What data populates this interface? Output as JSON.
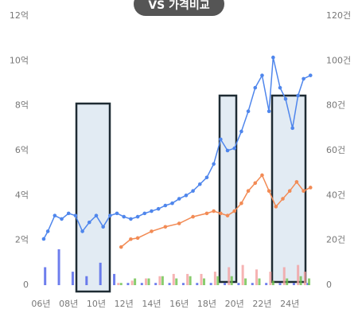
{
  "chart_data": {
    "type": "line",
    "button": "VS 가격비교",
    "xlim": [
      2005.8,
      2025.6
    ],
    "xticks": [
      {
        "value": 2006,
        "label": "06년"
      },
      {
        "value": 2008,
        "label": "08년"
      },
      {
        "value": 2010,
        "label": "10년"
      },
      {
        "value": 2012,
        "label": "12년"
      },
      {
        "value": 2014,
        "label": "14년"
      },
      {
        "value": 2016,
        "label": "16년"
      },
      {
        "value": 2018,
        "label": "18년"
      },
      {
        "value": 2020,
        "label": "20년"
      },
      {
        "value": 2022,
        "label": "22년"
      },
      {
        "value": 2024,
        "label": "24년"
      }
    ],
    "ylim": [
      0,
      12
    ],
    "yticks": [
      0,
      {
        "value": 2,
        "label": "2억"
      },
      {
        "value": 4,
        "label": "4억"
      },
      {
        "value": 6,
        "label": "6억"
      },
      {
        "value": 8,
        "label": "8억"
      },
      {
        "value": 10,
        "label": "10억"
      },
      {
        "value": 12,
        "label": "12억"
      }
    ],
    "y2lim": [
      0,
      120
    ],
    "y2ticks": [
      {
        "value": 0,
        "label": "0"
      },
      {
        "value": 20,
        "label": "20건"
      },
      {
        "value": 40,
        "label": "40건"
      },
      {
        "value": 60,
        "label": "60건"
      },
      {
        "value": 80,
        "label": "80건"
      },
      {
        "value": 100,
        "label": "100건"
      },
      {
        "value": 120,
        "label": "120건"
      }
    ],
    "grid": false,
    "series": [
      {
        "type": "bar",
        "axis": "y2",
        "color": "#4a5ee8",
        "x": [
          2006.3,
          2007.3,
          2008.3,
          2009.3,
          2010.3,
          2011.3,
          2012.3,
          2013.3,
          2014.3,
          2015.3,
          2016.3,
          2017.3,
          2018.3,
          2019.3,
          2020.3,
          2021.3,
          2022.3,
          2023.3,
          2024.3,
          2025.3
        ],
        "values": [
          8,
          16,
          6,
          4,
          10,
          5,
          1,
          1,
          1,
          1,
          1,
          1,
          1,
          1,
          1,
          1,
          1,
          1,
          1,
          1
        ]
      },
      {
        "type": "bar",
        "axis": "y2",
        "color": "#f4a0a0",
        "x": [
          2006.6,
          2007.6,
          2008.6,
          2009.6,
          2010.6,
          2011.6,
          2012.6,
          2013.6,
          2014.6,
          2015.6,
          2016.6,
          2017.6,
          2018.6,
          2019.6,
          2020.6,
          2021.6,
          2022.6,
          2023.6,
          2024.6,
          2025.1
        ],
        "values": [
          0,
          0,
          0,
          0,
          0,
          1,
          2,
          3,
          4,
          5,
          5,
          5,
          6,
          8,
          9,
          7,
          6,
          8,
          9,
          6
        ]
      },
      {
        "type": "bar",
        "axis": "y2",
        "color": "#6cc04a",
        "x": [
          2006.8,
          2007.8,
          2008.8,
          2009.8,
          2010.8,
          2011.8,
          2012.8,
          2013.8,
          2014.8,
          2015.8,
          2016.8,
          2017.8,
          2018.8,
          2019.8,
          2020.8,
          2021.8,
          2022.8,
          2023.8,
          2024.8,
          2025.4
        ],
        "values": [
          0,
          0,
          0,
          0,
          0,
          1,
          3,
          3,
          4,
          3,
          4,
          3,
          4,
          4,
          3,
          3,
          2,
          3,
          4,
          3
        ]
      },
      {
        "type": "line",
        "color": "#4f86ec",
        "x": [
          2006.2,
          2006.5,
          2007.0,
          2007.5,
          2008.0,
          2008.5,
          2009.0,
          2009.5,
          2010.0,
          2010.5,
          2011.0,
          2011.5,
          2012.0,
          2012.5,
          2013.0,
          2013.5,
          2014.0,
          2014.5,
          2015.0,
          2015.5,
          2016.0,
          2016.5,
          2017.0,
          2017.5,
          2018.0,
          2018.5,
          2019.0,
          2019.5,
          2020.0,
          2020.5,
          2021.0,
          2021.5,
          2022.0,
          2022.5,
          2022.8,
          2023.3,
          2023.7,
          2024.2,
          2024.6,
          2025.0,
          2025.5
        ],
        "values": [
          2.06,
          2.4,
          3.1,
          2.95,
          3.2,
          3.1,
          2.4,
          2.8,
          3.1,
          2.6,
          3.1,
          3.2,
          3.05,
          2.95,
          3.05,
          3.2,
          3.3,
          3.4,
          3.55,
          3.65,
          3.85,
          4.0,
          4.2,
          4.5,
          4.8,
          5.4,
          6.5,
          6.0,
          6.1,
          6.85,
          7.75,
          8.8,
          9.35,
          7.75,
          10.15,
          8.8,
          8.3,
          7.0,
          8.45,
          9.2,
          9.35
        ]
      },
      {
        "type": "line",
        "color": "#f28b55",
        "x": [
          2011.8,
          2012.5,
          2013.0,
          2014.0,
          2015.0,
          2016.0,
          2017.0,
          2018.0,
          2018.5,
          2019.0,
          2019.5,
          2020.0,
          2020.5,
          2021.0,
          2021.5,
          2022.0,
          2022.5,
          2023.0,
          2023.5,
          2024.0,
          2024.5,
          2025.0,
          2025.5
        ],
        "values": [
          1.7,
          2.05,
          2.1,
          2.4,
          2.6,
          2.75,
          3.05,
          3.2,
          3.3,
          3.2,
          3.1,
          3.3,
          3.65,
          4.2,
          4.55,
          4.9,
          4.2,
          3.5,
          3.85,
          4.2,
          4.6,
          4.2,
          4.35
        ]
      }
    ]
  }
}
